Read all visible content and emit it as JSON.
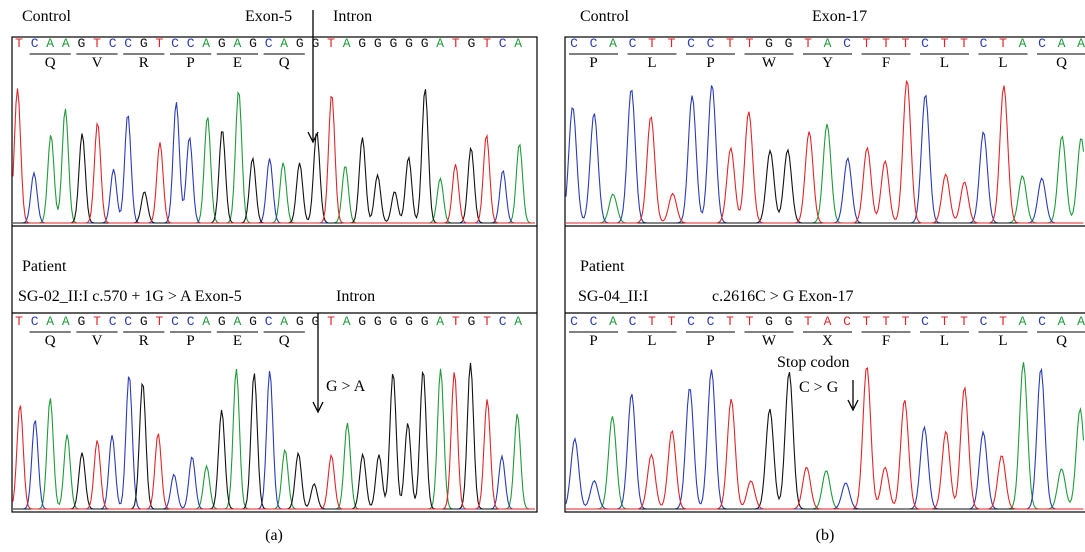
{
  "panels": [
    {
      "label": "(a)",
      "control": {
        "title": "Control",
        "exon": "Exon-5",
        "intron": "Intron",
        "sequence": "TCAAGTCCGTCCAGAGCAGGTAGGGGGATGTCA",
        "amino_acids": [
          "Q",
          "V",
          "R",
          "P",
          "E",
          "Q"
        ]
      },
      "patient": {
        "title": "Patient",
        "sample": "SG-02_II:I c.570 + 1G > A Exon-5",
        "intron": "Intron",
        "sequence": "TCAAGTCCGTCCAGAGCAGGTAGGGGGATGTCA",
        "amino_acids": [
          "Q",
          "V",
          "R",
          "P",
          "E",
          "Q"
        ],
        "mutation": "G > A"
      }
    },
    {
      "label": "(b)",
      "control": {
        "title": "Control",
        "exon": "Exon-17",
        "sequence": "CCACTTCCTTGGTACTTTCTTCTACAA",
        "amino_acids": [
          "P",
          "L",
          "P",
          "W",
          "Y",
          "F",
          "L",
          "L",
          "Q"
        ]
      },
      "patient": {
        "title": "Patient",
        "sample": "SG-04_II:I",
        "variant": "c.2616C > G  Exon-17",
        "sequence": "CCACTTCCTTGGTACTTTCTTCTACAA",
        "amino_acids": [
          "P",
          "L",
          "P",
          "W",
          "X",
          "F",
          "L",
          "L",
          "Q"
        ],
        "note": "Stop codon",
        "mutation": "C > G"
      }
    }
  ]
}
